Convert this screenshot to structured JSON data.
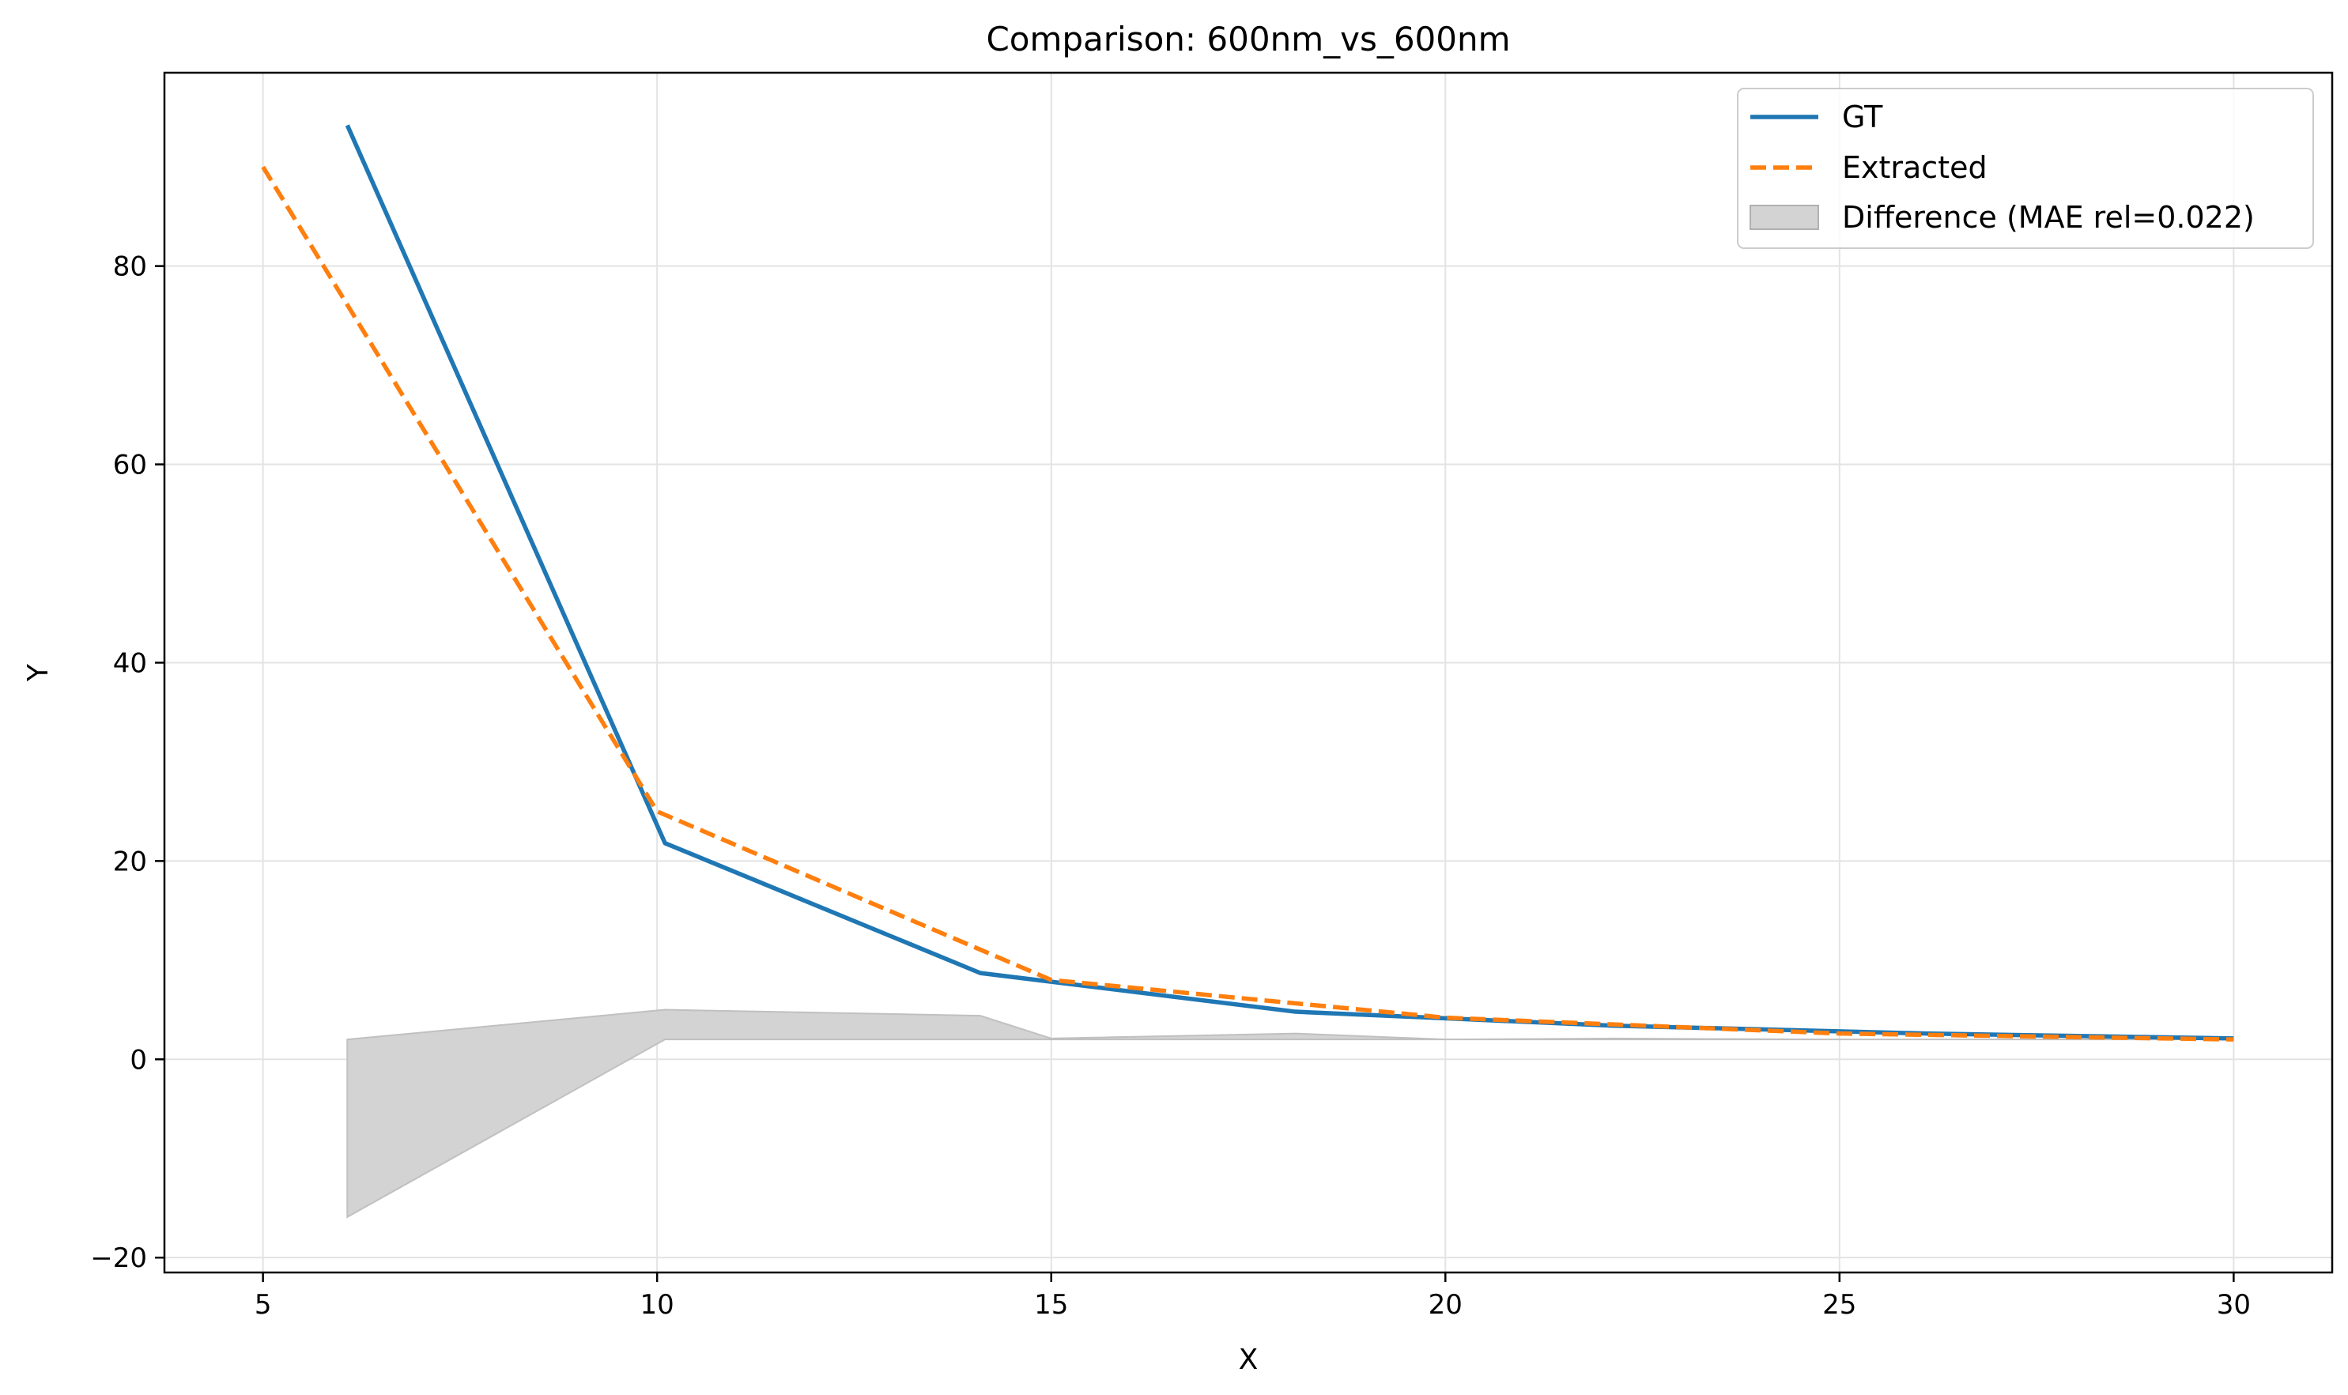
{
  "chart_data": {
    "type": "line",
    "title": "Comparison: 600nm_vs_600nm",
    "xlabel": "X",
    "ylabel": "Y",
    "xlim": [
      3.75,
      31.25
    ],
    "ylim": [
      -21.5,
      99.5
    ],
    "xticks": [
      5,
      10,
      15,
      20,
      25,
      30
    ],
    "yticks": [
      -20,
      0,
      20,
      40,
      60,
      80
    ],
    "xtick_labels": [
      "5",
      "10",
      "15",
      "20",
      "25",
      "30"
    ],
    "ytick_labels": [
      "−20",
      "0",
      "20",
      "40",
      "60",
      "80"
    ],
    "grid": true,
    "legend_position": "top-right",
    "series": [
      {
        "name": "GT",
        "color": "#1f77b4",
        "style": "solid",
        "x": [
          6.07,
          10.1,
          14.1,
          18.1,
          22.1,
          26.1,
          30.0
        ],
        "y": [
          94.2,
          21.8,
          8.7,
          4.8,
          3.4,
          2.6,
          2.1
        ]
      },
      {
        "name": "Extracted",
        "color": "#ff7f0e",
        "style": "dashed",
        "x": [
          5.0,
          10.0,
          15.0,
          20.0,
          25.0,
          30.0
        ],
        "y": [
          90.0,
          25.0,
          8.0,
          4.2,
          2.6,
          2.0
        ]
      },
      {
        "name": "Difference (MAE rel=0.022)",
        "color": "#a9a9a9",
        "style": "fill",
        "x": [
          6.07,
          10.1,
          14.1,
          15.0,
          18.1,
          20.0,
          22.1,
          25.0,
          26.1,
          30.0
        ],
        "lower": [
          -15.9,
          2.0,
          2.0,
          2.0,
          2.0,
          2.0,
          2.0,
          2.0,
          2.0,
          2.0
        ],
        "upper": [
          2.0,
          5.0,
          4.4,
          2.1,
          2.6,
          2.0,
          2.1,
          2.0,
          2.0,
          2.0
        ]
      }
    ]
  }
}
